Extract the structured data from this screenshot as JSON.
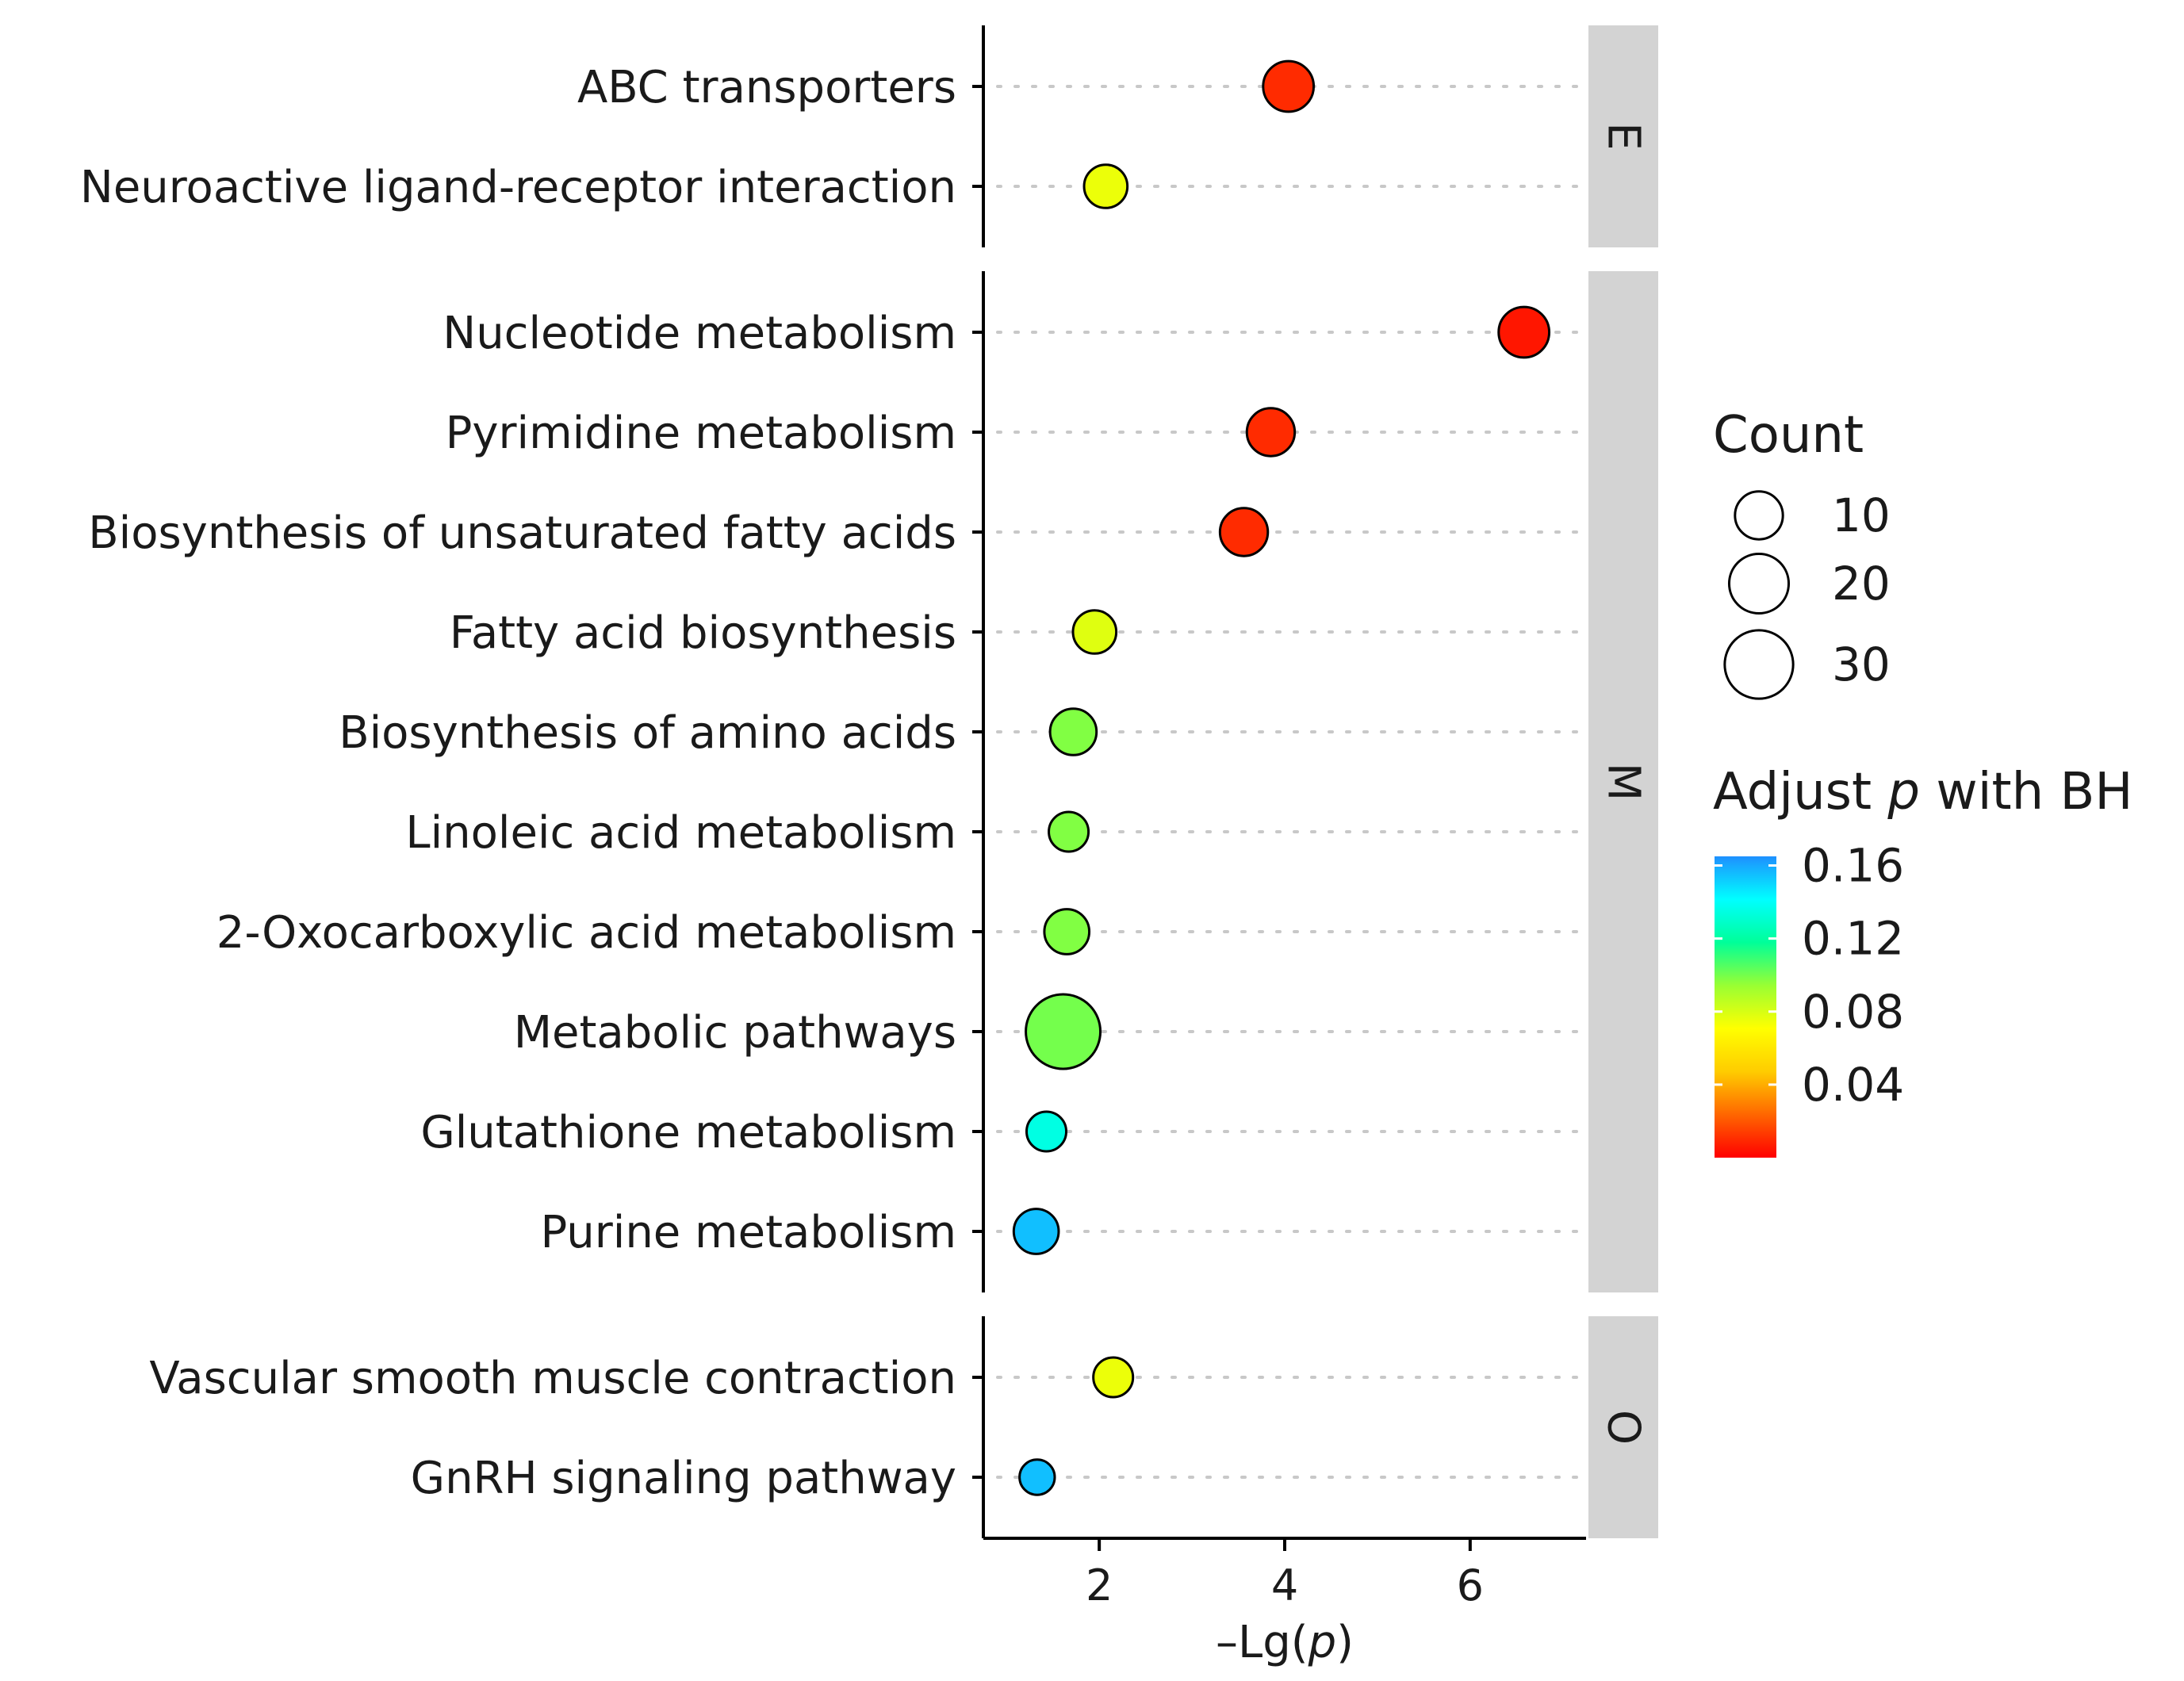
{
  "chart_data": {
    "type": "scatter",
    "xlabel_prefix": "–Lg(",
    "xlabel_var": "p",
    "xlabel_suffix": ")",
    "xlim": [
      0.75,
      7.25
    ],
    "xticks": [
      2,
      4,
      6
    ],
    "facets": [
      {
        "name": "E",
        "terms": [
          {
            "label": "ABC transporters",
            "x": 4.04,
            "count": 12,
            "padj": 0.01
          },
          {
            "label": "Neuroactive ligand-receptor interaction",
            "x": 2.07,
            "count": 7,
            "padj": 0.075
          }
        ]
      },
      {
        "name": "M",
        "terms": [
          {
            "label": "Nucleotide metabolism",
            "x": 6.58,
            "count": 12,
            "padj": 0.005
          },
          {
            "label": "Pyrimidine metabolism",
            "x": 3.85,
            "count": 10,
            "padj": 0.01
          },
          {
            "label": "Biosynthesis of unsaturated fatty acids",
            "x": 3.56,
            "count": 10,
            "padj": 0.01
          },
          {
            "label": "Fatty acid biosynthesis",
            "x": 1.95,
            "count": 7,
            "padj": 0.078
          },
          {
            "label": "Biosynthesis of amino acids",
            "x": 1.72,
            "count": 9,
            "padj": 0.098
          },
          {
            "label": "Linoleic acid metabolism",
            "x": 1.67,
            "count": 5,
            "padj": 0.098
          },
          {
            "label": "2-Oxocarboxylic acid metabolism",
            "x": 1.65,
            "count": 8,
            "padj": 0.098
          },
          {
            "label": "Metabolic pathways",
            "x": 1.61,
            "count": 38,
            "padj": 0.1
          },
          {
            "label": "Glutathione metabolism",
            "x": 1.43,
            "count": 5,
            "padj": 0.135
          },
          {
            "label": "Purine metabolism",
            "x": 1.32,
            "count": 8,
            "padj": 0.155
          }
        ]
      },
      {
        "name": "O",
        "terms": [
          {
            "label": "Vascular smooth muscle contraction",
            "x": 2.15,
            "count": 5,
            "padj": 0.075
          },
          {
            "label": "GnRH signaling pathway",
            "x": 1.33,
            "count": 3,
            "padj": 0.155
          }
        ]
      }
    ],
    "size_legend": {
      "title": "Count",
      "values": [
        10,
        20,
        30
      ]
    },
    "color_legend": {
      "title_prefix": "Adjust ",
      "title_var": "p",
      "title_suffix": " with BH",
      "ticks": [
        "0.16",
        "0.12",
        "0.08",
        "0.04"
      ],
      "tick_values": [
        0.16,
        0.12,
        0.08,
        0.04
      ],
      "range": [
        0.0,
        0.165
      ],
      "colors": [
        "#ff0000",
        "#ff6600",
        "#ffcc00",
        "#ffff00",
        "#99ff33",
        "#00ff99",
        "#00ffff",
        "#1e90ff"
      ]
    }
  }
}
